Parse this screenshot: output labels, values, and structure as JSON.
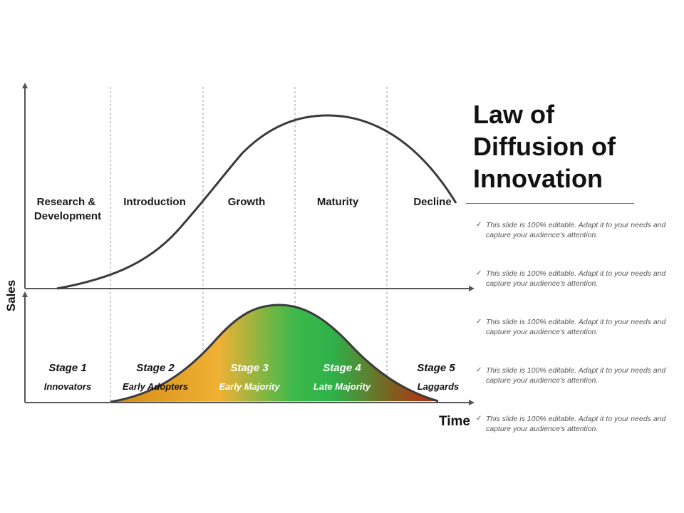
{
  "title_lines": [
    "Law of",
    "Diffusion of",
    "Innovation"
  ],
  "axes": {
    "y_label": "Sales",
    "x_label": "Time"
  },
  "phases": [
    {
      "lines": [
        "Research &",
        "Development"
      ]
    },
    {
      "lines": [
        "Introduction"
      ]
    },
    {
      "lines": [
        "Growth"
      ]
    },
    {
      "lines": [
        "Maturity"
      ]
    },
    {
      "lines": [
        "Decline"
      ]
    }
  ],
  "stages": [
    {
      "title": "Stage 1",
      "name": "Innovators"
    },
    {
      "title": "Stage 2",
      "name": "Early Adopters"
    },
    {
      "title": "Stage 3",
      "name": "Early Majority"
    },
    {
      "title": "Stage 4",
      "name": "Late Majority"
    },
    {
      "title": "Stage 5",
      "name": "Laggards"
    }
  ],
  "notes": [
    "This slide is 100% editable. Adapt it to your needs and capture your audience's attention.",
    "This slide is 100% editable. Adapt it to your needs and capture your audience's attention.",
    "This slide is 100% editable. Adapt it to your needs and capture your audience's attention.",
    "This slide is 100% editable. Adapt it to your needs and capture your audience's attention.",
    "This slide is 100% editable. Adapt it to your needs and capture your audience's attention."
  ],
  "colors": {
    "axis": "#555555",
    "curve": "#3a3a3a",
    "divider": "#9a9a9a",
    "gradient": [
      "#d38a12",
      "#f0b135",
      "#3cb94a",
      "#2eb14a",
      "#7e5f1e",
      "#cc2210"
    ],
    "stage_text_dark": "#111111",
    "stage_text_light": "#ffffff"
  }
}
